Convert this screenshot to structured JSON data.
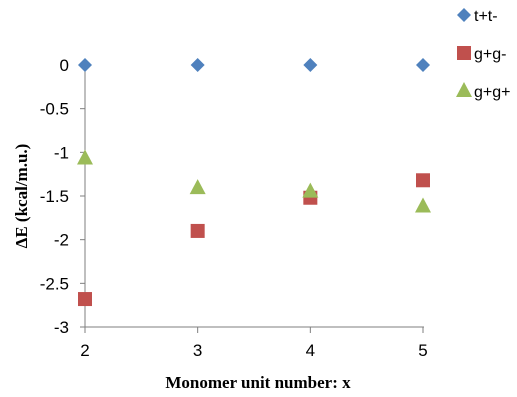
{
  "chart_data": {
    "type": "scatter",
    "title": "",
    "xlabel": "Monomer  unit number:  x",
    "ylabel": "ΔE (kcal/m.u.)",
    "x": [
      2,
      3,
      4,
      5
    ],
    "xticks": [
      "2",
      "3",
      "4",
      "5"
    ],
    "xlim": [
      2,
      5
    ],
    "ylim": [
      -3,
      0
    ],
    "yticks": [
      "0",
      "-0.5",
      "-1",
      "-1.5",
      "-2",
      "-2.5",
      "-3"
    ],
    "ytick_values": [
      0,
      -0.5,
      -1,
      -1.5,
      -2,
      -2.5,
      -3
    ],
    "grid": false,
    "legend_position": "top-right",
    "series": [
      {
        "name": "t+t-",
        "marker": "diamond",
        "color": "#4F81BD",
        "values": [
          0,
          0,
          0,
          0
        ]
      },
      {
        "name": "g+g-",
        "marker": "square",
        "color": "#C0504D",
        "values": [
          -2.68,
          -1.9,
          -1.52,
          -1.32
        ]
      },
      {
        "name": "g+g+",
        "marker": "triangle",
        "color": "#9BBB59",
        "values": [
          -1.07,
          -1.41,
          -1.45,
          -1.62
        ]
      }
    ]
  }
}
